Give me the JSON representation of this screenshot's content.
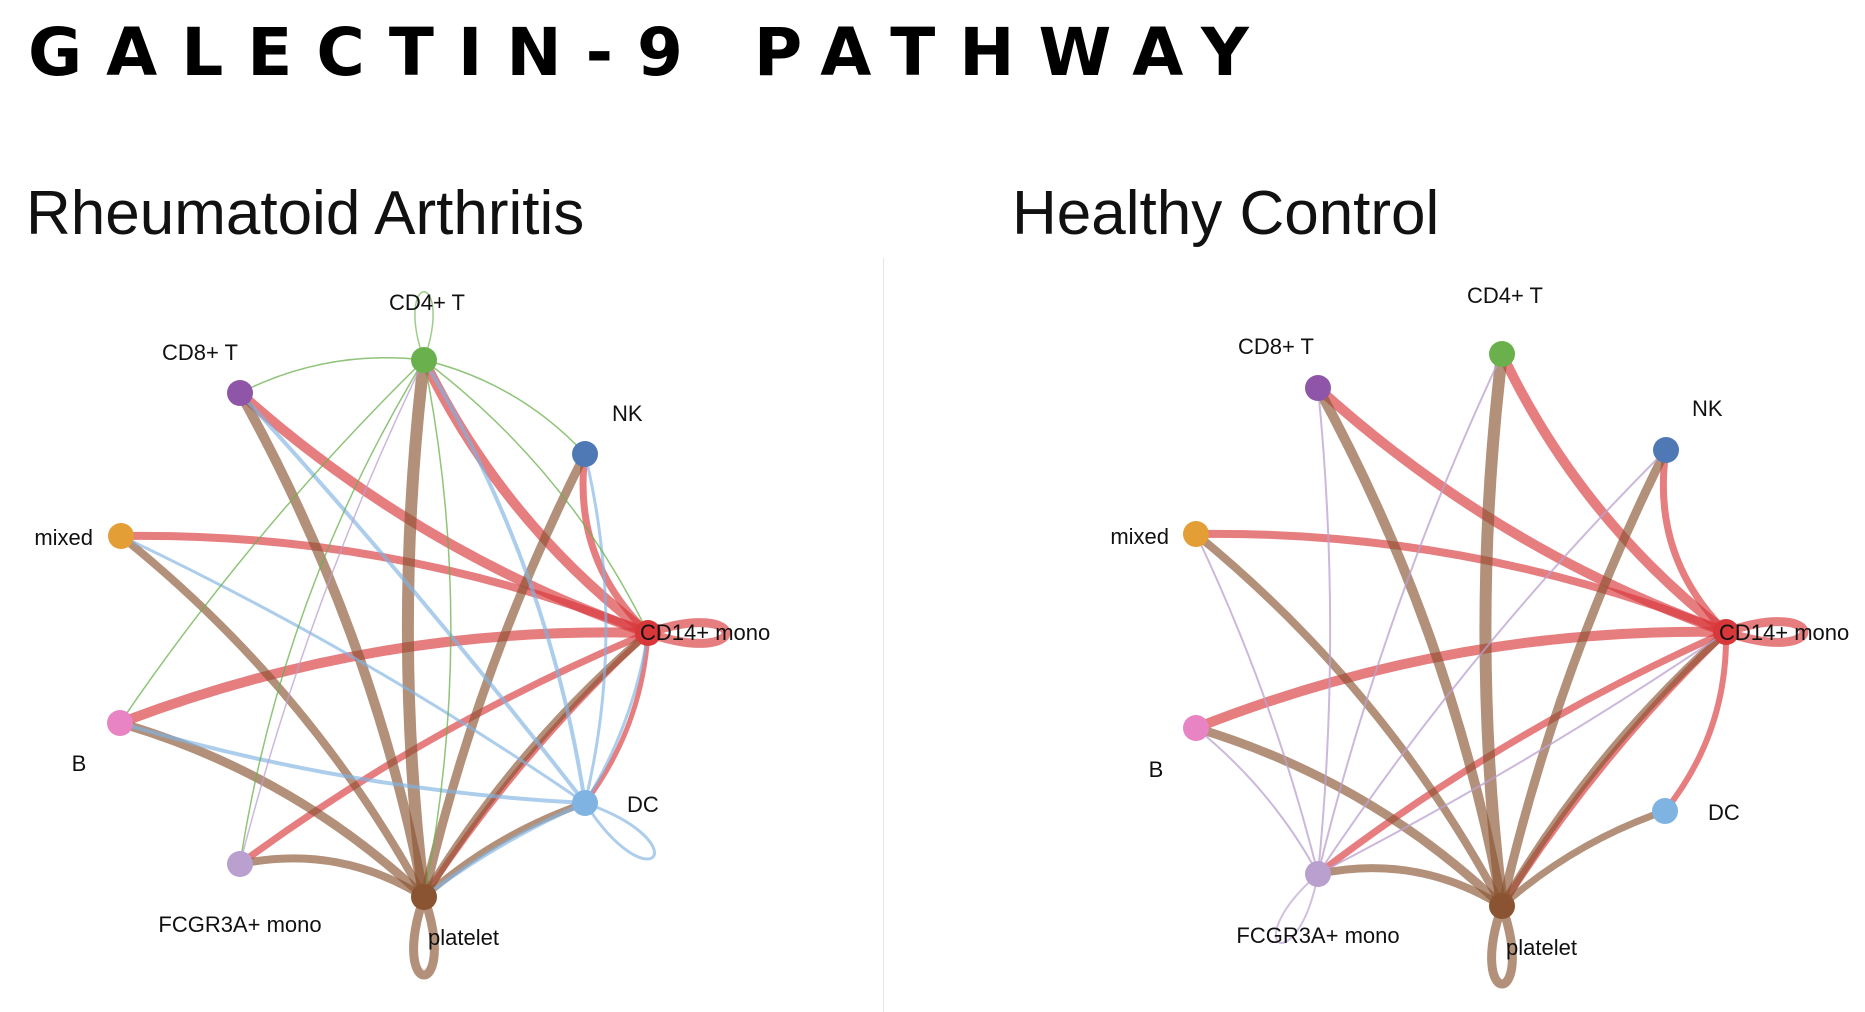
{
  "title": "GALECTIN-9 PATHWAY",
  "panels": [
    {
      "id": "ra",
      "title": "Rheumatoid Arthritis",
      "nodes": [
        {
          "name": "CD4+ T",
          "color": "#6ab04c"
        },
        {
          "name": "CD8+ T",
          "color": "#8e55a8"
        },
        {
          "name": "NK",
          "color": "#4f79b4"
        },
        {
          "name": "mixed",
          "color": "#e39e35"
        },
        {
          "name": "CD14+ mono",
          "color": "#d9383a"
        },
        {
          "name": "B",
          "color": "#e884c4"
        },
        {
          "name": "DC",
          "color": "#7fb4e2"
        },
        {
          "name": "FCGR3A+ mono",
          "color": "#b9a0cf"
        },
        {
          "name": "platelet",
          "color": "#8a5433"
        }
      ]
    },
    {
      "id": "hc",
      "title": "Healthy Control",
      "nodes": [
        {
          "name": "CD4+ T",
          "color": "#6ab04c"
        },
        {
          "name": "CD8+ T",
          "color": "#8e55a8"
        },
        {
          "name": "NK",
          "color": "#4f79b4"
        },
        {
          "name": "mixed",
          "color": "#e39e35"
        },
        {
          "name": "CD14+ mono",
          "color": "#d9383a"
        },
        {
          "name": "B",
          "color": "#e884c4"
        },
        {
          "name": "DC",
          "color": "#7fb4e2"
        },
        {
          "name": "FCGR3A+ mono",
          "color": "#b9a0cf"
        },
        {
          "name": "platelet",
          "color": "#8a5433"
        }
      ]
    }
  ]
}
